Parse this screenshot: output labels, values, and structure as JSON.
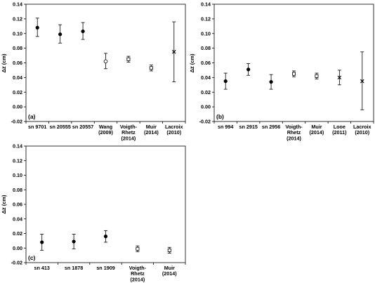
{
  "chart_data": [
    {
      "type": "scatter",
      "panel_label": "(a)",
      "ylabel": "Δz̅ (cm)",
      "ylim": [
        -0.02,
        0.14
      ],
      "yticks": [
        "-0.02",
        "0.00",
        "0.02",
        "0.04",
        "0.06",
        "0.08",
        "0.10",
        "0.12",
        "0.14"
      ],
      "categories": [
        [
          "sn 9701"
        ],
        [
          "sn 20555"
        ],
        [
          "sn 20557"
        ],
        [
          "Wang",
          "(2009)"
        ],
        [
          "Voigth-",
          "Rhetz",
          "(2014)"
        ],
        [
          "Muir",
          "(2014)"
        ],
        [
          "Lacroix",
          "(2010)"
        ]
      ],
      "points": [
        {
          "y": 0.108,
          "lo": 0.096,
          "hi": 0.121,
          "marker": "dot"
        },
        {
          "y": 0.099,
          "lo": 0.087,
          "hi": 0.112,
          "marker": "dot"
        },
        {
          "y": 0.103,
          "lo": 0.092,
          "hi": 0.115,
          "marker": "dot"
        },
        {
          "y": 0.062,
          "lo": 0.052,
          "hi": 0.073,
          "marker": "circle"
        },
        {
          "y": 0.065,
          "lo": 0.061,
          "hi": 0.069,
          "marker": "square"
        },
        {
          "y": 0.053,
          "lo": 0.049,
          "hi": 0.057,
          "marker": "square"
        },
        {
          "y": 0.075,
          "lo": 0.034,
          "hi": 0.116,
          "marker": "cross"
        }
      ]
    },
    {
      "type": "scatter",
      "panel_label": "(b)",
      "ylabel": "Δz̅ (cm)",
      "ylim": [
        -0.02,
        0.14
      ],
      "yticks": [
        "-0.02",
        "0.00",
        "0.02",
        "0.04",
        "0.06",
        "0.08",
        "0.10",
        "0.12",
        "0.14"
      ],
      "categories": [
        [
          "sn 994"
        ],
        [
          "sn 2915"
        ],
        [
          "sn 2956"
        ],
        [
          "Voigth-",
          "Rhetz",
          "(2014)"
        ],
        [
          "Muir",
          "(2014)"
        ],
        [
          "Looe",
          "(2011)"
        ],
        [
          "Lacroix",
          "(2010)"
        ]
      ],
      "points": [
        {
          "y": 0.035,
          "lo": 0.024,
          "hi": 0.046,
          "marker": "dot"
        },
        {
          "y": 0.051,
          "lo": 0.043,
          "hi": 0.059,
          "marker": "dot"
        },
        {
          "y": 0.034,
          "lo": 0.024,
          "hi": 0.044,
          "marker": "dot"
        },
        {
          "y": 0.045,
          "lo": 0.041,
          "hi": 0.049,
          "marker": "square"
        },
        {
          "y": 0.042,
          "lo": 0.038,
          "hi": 0.046,
          "marker": "square"
        },
        {
          "y": 0.04,
          "lo": 0.03,
          "hi": 0.05,
          "marker": "cross"
        },
        {
          "y": 0.035,
          "lo": -0.004,
          "hi": 0.075,
          "marker": "cross"
        }
      ]
    },
    {
      "type": "scatter",
      "panel_label": "(c)",
      "ylabel": "Δz̅ (cm)",
      "ylim": [
        -0.02,
        0.14
      ],
      "yticks": [
        "-0.02",
        "0.00",
        "0.02",
        "0.04",
        "0.06",
        "0.08",
        "0.10",
        "0.12",
        "0.14"
      ],
      "categories": [
        [
          "sn 413"
        ],
        [
          "sn 1878"
        ],
        [
          "sn 1909"
        ],
        [
          "Voigth-",
          "Rhetz",
          "(2014)"
        ],
        [
          "Muir",
          "(2014)"
        ]
      ],
      "points": [
        {
          "y": 0.008,
          "lo": -0.003,
          "hi": 0.019,
          "marker": "dot"
        },
        {
          "y": 0.009,
          "lo": -0.001,
          "hi": 0.019,
          "marker": "dot"
        },
        {
          "y": 0.016,
          "lo": 0.008,
          "hi": 0.024,
          "marker": "dot"
        },
        {
          "y": -0.001,
          "lo": -0.005,
          "hi": 0.003,
          "marker": "square"
        },
        {
          "y": -0.003,
          "lo": -0.007,
          "hi": 0.001,
          "marker": "square"
        }
      ]
    }
  ]
}
